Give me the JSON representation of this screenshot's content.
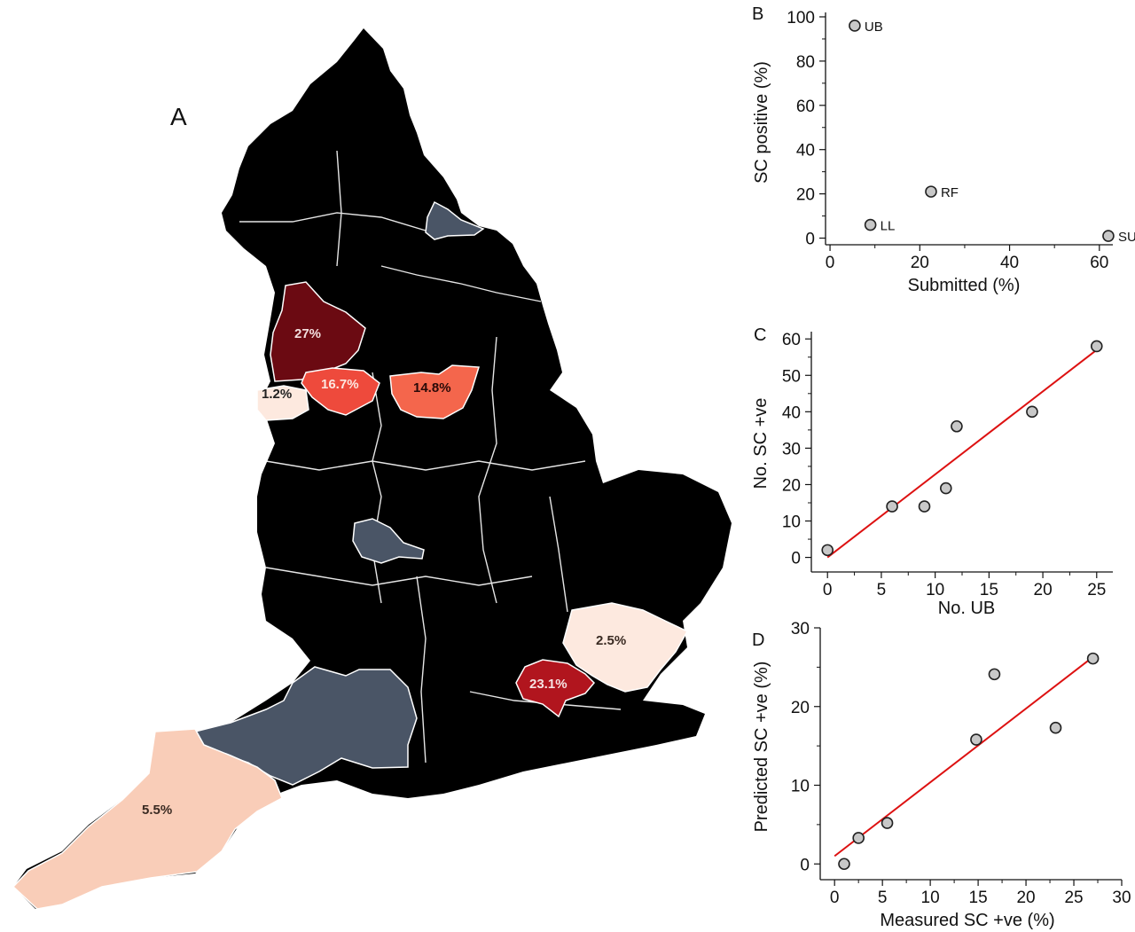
{
  "map": {
    "panel_letter": "A",
    "colors": {
      "land": "#cccccc",
      "dark_region": "#4a5566",
      "highest": "#6b0a12",
      "high": "#b1151e",
      "mid": "#ee4a3c",
      "mid_low": "#f4664c",
      "low": "#f9cdb8",
      "very_low": "#fde9df"
    },
    "regions": [
      {
        "id": "north-west",
        "label": "27%",
        "value": 27
      },
      {
        "id": "london",
        "label": "23.1%",
        "value": 23.1
      },
      {
        "id": "greater-manchester",
        "label": "16.7%",
        "value": 16.7
      },
      {
        "id": "south-yorkshire",
        "label": "14.8%",
        "value": 14.8
      },
      {
        "id": "cornwall-devon",
        "label": "5.5%",
        "value": 5.5
      },
      {
        "id": "essex",
        "label": "2.5%",
        "value": 2.5
      },
      {
        "id": "merseyside",
        "label": "1.2%",
        "value": 1.2
      }
    ]
  },
  "chart_data": [
    {
      "panel": "B",
      "type": "scatter",
      "xlabel": "Submitted (%)",
      "ylabel": "SC positive (%)",
      "xlim": [
        -1,
        63
      ],
      "ylim": [
        -3,
        102
      ],
      "xticks": [
        0,
        20,
        40,
        60
      ],
      "yticks": [
        0,
        20,
        40,
        60,
        80,
        100
      ],
      "points": [
        {
          "x": 5.5,
          "y": 96,
          "label": "UB"
        },
        {
          "x": 22.5,
          "y": 21,
          "label": "RF"
        },
        {
          "x": 9,
          "y": 6,
          "label": "LL"
        },
        {
          "x": 62,
          "y": 1,
          "label": "SU"
        }
      ]
    },
    {
      "panel": "C",
      "type": "scatter",
      "xlabel": "No. UB",
      "ylabel": "No. SC +ve",
      "xlim": [
        -1.5,
        26.5
      ],
      "ylim": [
        -4,
        62
      ],
      "xticks": [
        0,
        5,
        10,
        15,
        20,
        25
      ],
      "yticks": [
        0,
        10,
        20,
        30,
        40,
        50,
        60
      ],
      "points": [
        {
          "x": 0,
          "y": 2
        },
        {
          "x": 6,
          "y": 14
        },
        {
          "x": 9,
          "y": 14
        },
        {
          "x": 11,
          "y": 19
        },
        {
          "x": 12,
          "y": 36
        },
        {
          "x": 19,
          "y": 40
        },
        {
          "x": 25,
          "y": 58
        }
      ],
      "fit_line": {
        "x": [
          0,
          25
        ],
        "y": [
          0,
          57
        ]
      }
    },
    {
      "panel": "D",
      "type": "scatter",
      "xlabel": "Measured SC +ve (%)",
      "ylabel": "Predicted SC +ve (%)",
      "xlim": [
        -1.5,
        30
      ],
      "ylim": [
        -2,
        30
      ],
      "xticks": [
        0,
        5,
        10,
        15,
        20,
        25,
        30
      ],
      "yticks": [
        0,
        10,
        20,
        30
      ],
      "points": [
        {
          "x": 1,
          "y": 0
        },
        {
          "x": 2.5,
          "y": 3.3
        },
        {
          "x": 5.5,
          "y": 5.2
        },
        {
          "x": 14.8,
          "y": 15.8
        },
        {
          "x": 16.7,
          "y": 24.1
        },
        {
          "x": 23.1,
          "y": 17.3
        },
        {
          "x": 27,
          "y": 26.1
        }
      ],
      "fit_line": {
        "x": [
          0,
          27
        ],
        "y": [
          1,
          26.3
        ]
      }
    }
  ],
  "style": {
    "point_fill": "#c8c8c8",
    "point_stroke": "#222222",
    "fit_color": "#dd1111"
  }
}
